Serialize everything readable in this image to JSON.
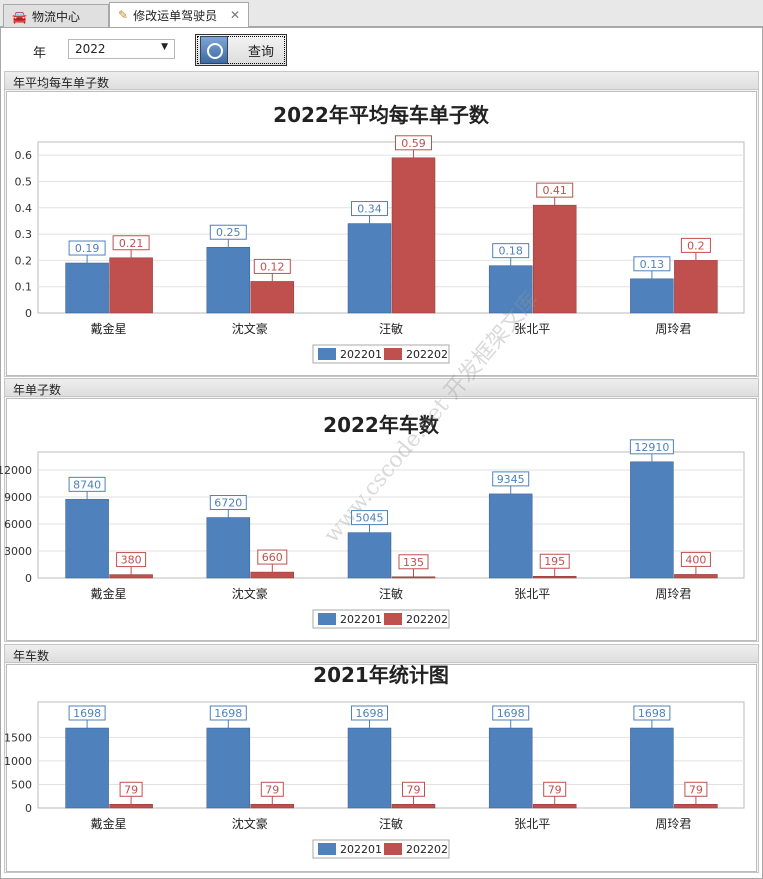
{
  "tabs": [
    {
      "label": "物流中心",
      "icon": "car-icon"
    },
    {
      "label": "修改运单驾驶员",
      "icon": "edit-user-icon",
      "close": "✕"
    }
  ],
  "toolbar": {
    "year_label": "年",
    "year_value": "2022",
    "query_label": "查询"
  },
  "watermark": "www.cscode.net 开发框架文库",
  "colors": {
    "s1": "#4f81bd",
    "s2": "#c0504d"
  },
  "panels": [
    {
      "header": "年平均每车单子数"
    },
    {
      "header": "年单子数"
    },
    {
      "header": "年车数"
    }
  ],
  "chart_data": [
    {
      "type": "bar",
      "title": "2022年平均每车单子数",
      "categories": [
        "戴金星",
        "沈文豪",
        "汪敏",
        "张北平",
        "周玲君"
      ],
      "series": [
        {
          "name": "202201",
          "values": [
            0.19,
            0.25,
            0.34,
            0.18,
            0.13
          ]
        },
        {
          "name": "202202",
          "values": [
            0.21,
            0.12,
            0.59,
            0.41,
            0.2
          ]
        }
      ],
      "yticks": [
        0,
        0.1,
        0.2,
        0.3,
        0.4,
        0.5,
        0.6
      ],
      "ylim": [
        0,
        0.65
      ],
      "legend": "bottom-center"
    },
    {
      "type": "bar",
      "title": "2022年车数",
      "categories": [
        "戴金星",
        "沈文豪",
        "汪敏",
        "张北平",
        "周玲君"
      ],
      "series": [
        {
          "name": "202201",
          "values": [
            8740,
            6720,
            5045,
            9345,
            12910
          ]
        },
        {
          "name": "202202",
          "values": [
            380,
            660,
            135,
            195,
            400
          ]
        }
      ],
      "yticks": [
        0,
        3000,
        6000,
        9000,
        12000
      ],
      "ylim": [
        0,
        14000
      ],
      "legend": "bottom-center"
    },
    {
      "type": "bar",
      "title": "2021年统计图",
      "categories": [
        "戴金星",
        "沈文豪",
        "汪敏",
        "张北平",
        "周玲君"
      ],
      "series": [
        {
          "name": "202201",
          "values": [
            1698,
            1698,
            1698,
            1698,
            1698
          ]
        },
        {
          "name": "202202",
          "values": [
            79,
            79,
            79,
            79,
            79
          ]
        }
      ],
      "yticks": [
        0,
        500,
        1000,
        1500
      ],
      "ylim": [
        0,
        2250
      ],
      "legend": "bottom-center"
    }
  ]
}
